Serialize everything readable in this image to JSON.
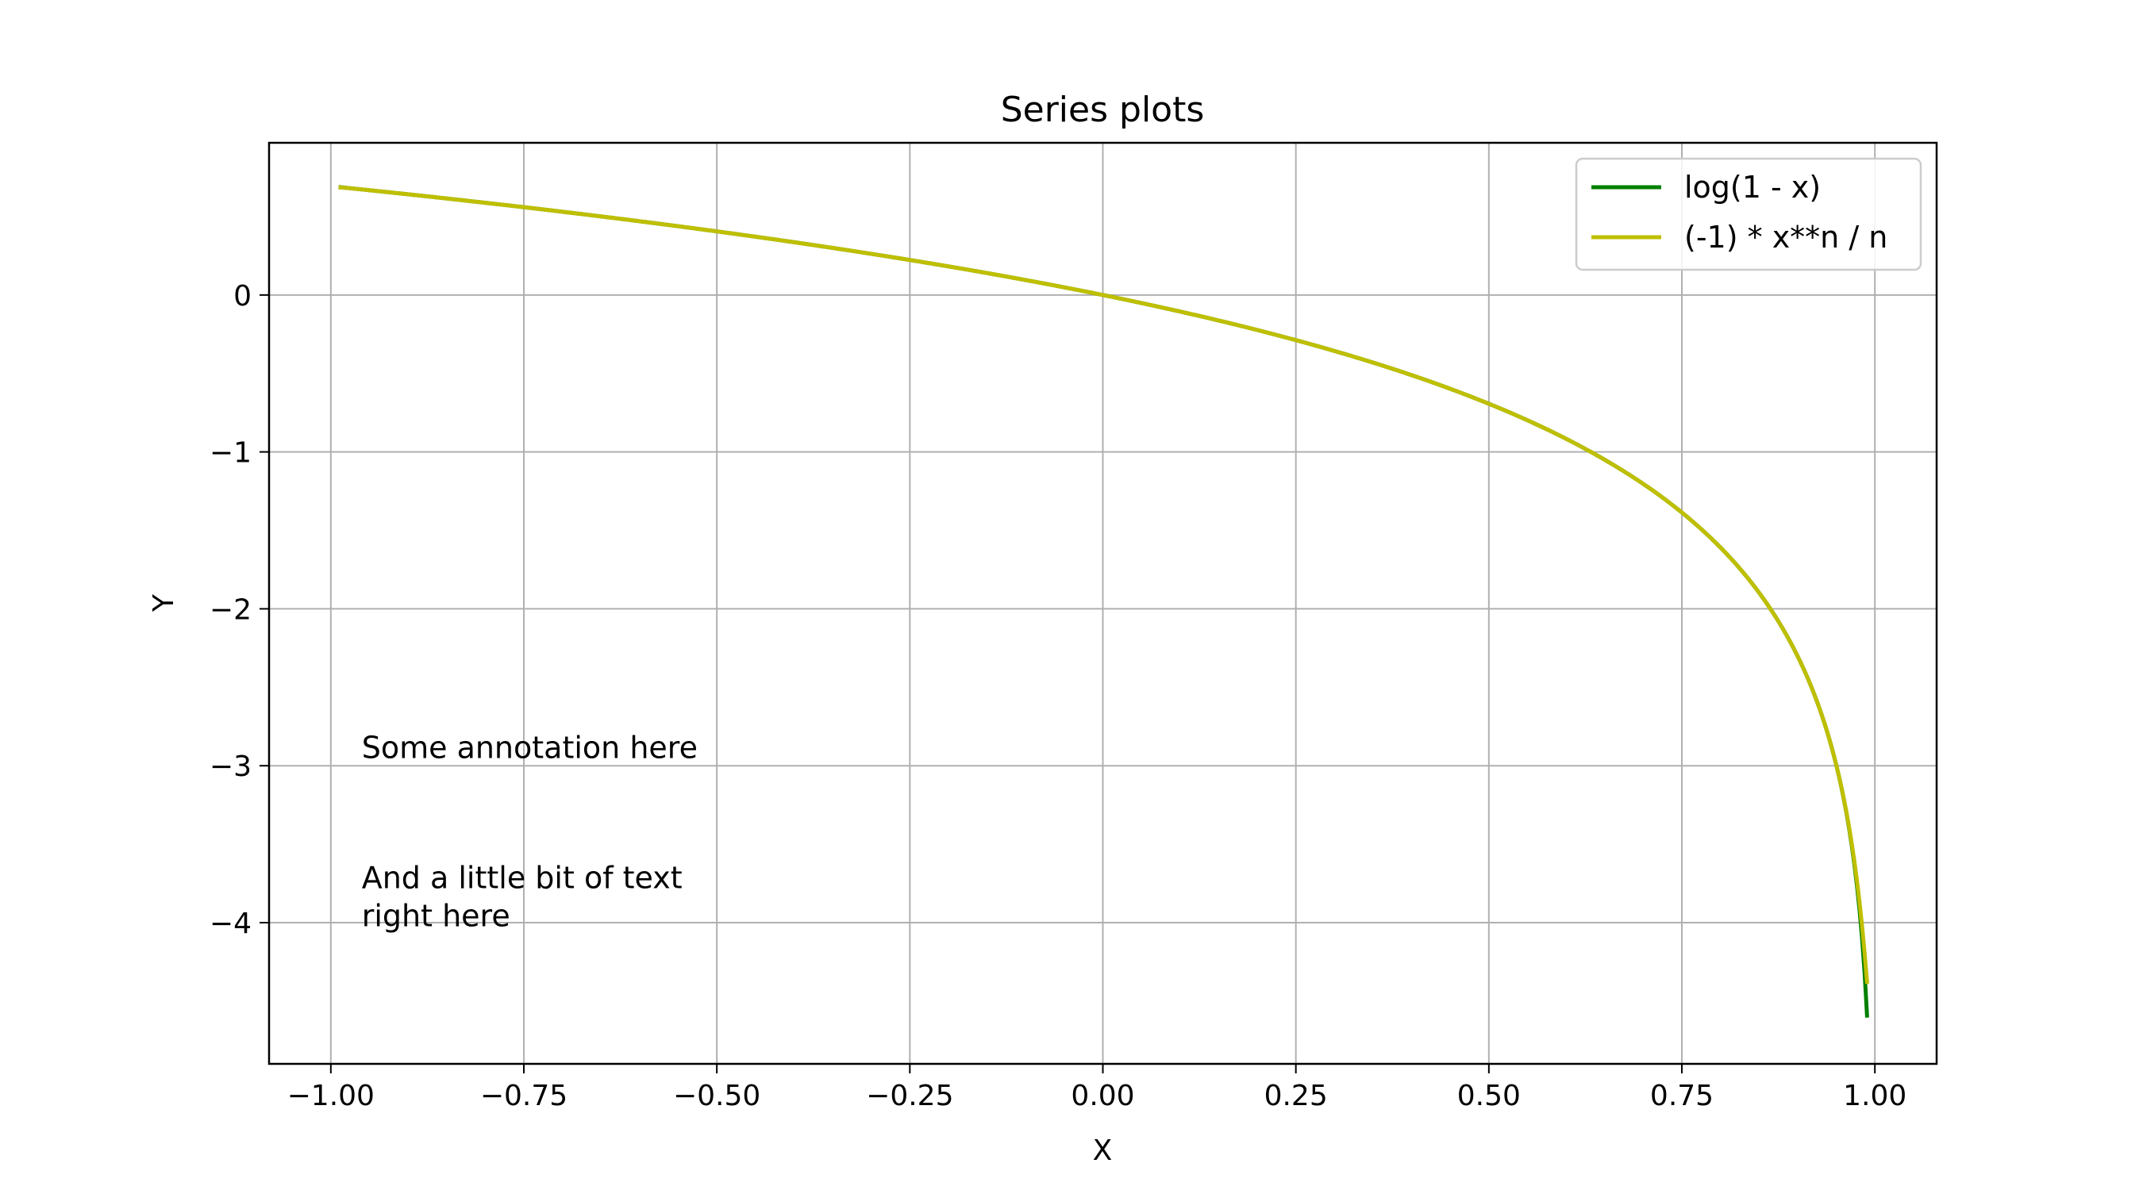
{
  "chart_data": {
    "type": "line",
    "title": "Series plots",
    "xlabel": "X",
    "ylabel": "Y",
    "xlim": [
      -1.08,
      1.08
    ],
    "ylim": [
      -4.9,
      0.97
    ],
    "xticks": [
      -1.0,
      -0.75,
      -0.5,
      -0.25,
      0.0,
      0.25,
      0.5,
      0.75,
      1.0
    ],
    "xtick_labels": [
      "−1.00",
      "−0.75",
      "−0.50",
      "−0.25",
      "0.00",
      "0.25",
      "0.50",
      "0.75",
      "1.00"
    ],
    "yticks": [
      0,
      -1,
      -2,
      -3,
      -4
    ],
    "ytick_labels": [
      "0",
      "−1",
      "−2",
      "−3",
      "−4"
    ],
    "grid": true,
    "legend_position": "top-right",
    "x_range": [
      -0.99,
      0.99
    ],
    "series": [
      {
        "name": "log(1 - x)",
        "color": "#008000",
        "function": "log(1 - x)"
      },
      {
        "name": "(-1) * x**n / n",
        "color": "#bfbf00",
        "function": "partial sum of (-1) * x**n / n"
      }
    ],
    "annotations": [
      {
        "lines": [
          "Some annotation here"
        ],
        "x": -0.96,
        "y": -2.95
      },
      {
        "lines": [
          "And a little bit of text",
          "right here"
        ],
        "x": -0.96,
        "y": -3.78
      }
    ]
  }
}
